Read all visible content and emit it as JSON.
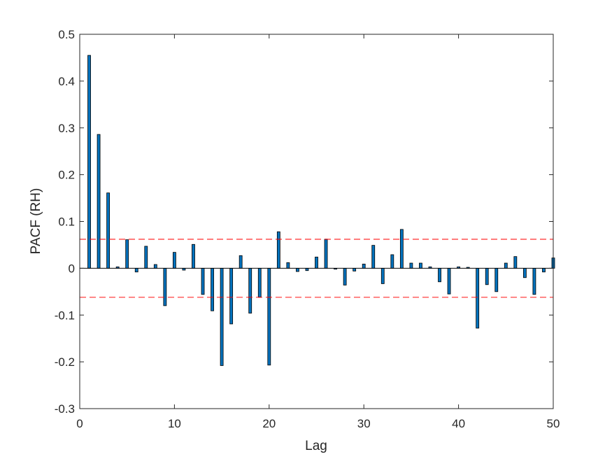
{
  "chart_data": {
    "type": "bar",
    "title": "",
    "xlabel": "Lag",
    "ylabel": "PACF (RH)",
    "xlim": [
      0,
      50
    ],
    "ylim": [
      -0.3,
      0.5
    ],
    "xticks": [
      "0",
      "10",
      "20",
      "30",
      "40",
      "50"
    ],
    "yticks": [
      "-0.3",
      "-0.2",
      "-0.1",
      "0",
      "0.1",
      "0.2",
      "0.3",
      "0.4",
      "0.5"
    ],
    "grid": false,
    "bounds": [
      0.062,
      -0.062
    ],
    "bar_color": "#0072BD",
    "bound_color": "#FF0000",
    "lags": [
      1,
      2,
      3,
      4,
      5,
      6,
      7,
      8,
      9,
      10,
      11,
      12,
      13,
      14,
      15,
      16,
      17,
      18,
      19,
      20,
      21,
      22,
      23,
      24,
      25,
      26,
      27,
      28,
      29,
      30,
      31,
      32,
      33,
      34,
      35,
      36,
      37,
      38,
      39,
      40,
      41,
      42,
      43,
      44,
      45,
      46,
      47,
      48,
      49,
      50
    ],
    "values": [
      0.455,
      0.286,
      0.161,
      0.003,
      0.061,
      -0.008,
      0.047,
      0.008,
      -0.08,
      0.034,
      -0.004,
      0.051,
      -0.056,
      -0.091,
      -0.208,
      -0.119,
      0.027,
      -0.096,
      -0.062,
      -0.207,
      0.078,
      0.012,
      -0.007,
      -0.005,
      0.024,
      0.062,
      -0.002,
      -0.036,
      -0.006,
      0.009,
      0.049,
      -0.033,
      0.029,
      0.083,
      0.011,
      0.011,
      0.003,
      -0.029,
      -0.055,
      0.003,
      0.002,
      -0.128,
      -0.035,
      -0.05,
      0.011,
      0.025,
      -0.02,
      -0.056,
      -0.008,
      0.022
    ]
  }
}
